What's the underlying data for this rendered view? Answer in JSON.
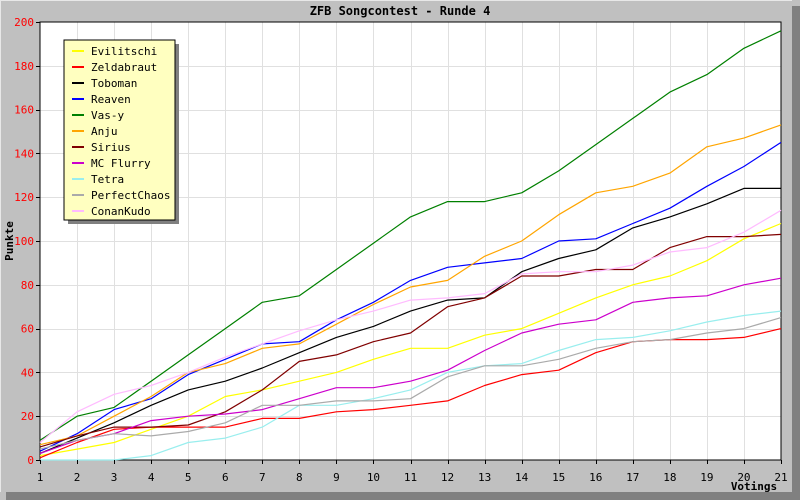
{
  "chart_data": {
    "type": "line",
    "title": "ZFB Songcontest - Runde 4",
    "xlabel": "Votings",
    "ylabel": "Punkte",
    "x": [
      1,
      2,
      3,
      4,
      5,
      6,
      7,
      8,
      9,
      10,
      11,
      12,
      13,
      14,
      15,
      16,
      17,
      18,
      19,
      20,
      21
    ],
    "x_tick_labels": [
      "1",
      "2",
      "3",
      "4",
      "5",
      "6",
      "7",
      "8",
      "9",
      "10",
      "11",
      "12",
      "13",
      "14",
      "15",
      "16",
      "17",
      "18",
      "19",
      "20",
      "21"
    ],
    "y_tick_labels": [
      "0",
      "20",
      "40",
      "60",
      "80",
      "100",
      "120",
      "140",
      "160",
      "180",
      "200"
    ],
    "xlim": [
      1,
      21
    ],
    "ylim": [
      0,
      200
    ],
    "grid": true,
    "legend_position": "top-left",
    "colors": {
      "page_background": "#c0c0c0",
      "plot_background": "#ffffff",
      "grid": "#e0e0e0",
      "y_tick_color": "#ff0000",
      "legend_background": "#ffffc0"
    },
    "series": [
      {
        "name": "Evilitschi",
        "color": "#ffff00",
        "values": [
          2,
          5,
          8,
          14,
          20,
          29,
          32,
          36,
          40,
          46,
          51,
          51,
          57,
          60,
          67,
          74,
          80,
          84,
          91,
          101,
          108
        ]
      },
      {
        "name": "Zeldabraut",
        "color": "#ff0000",
        "values": [
          1,
          8,
          14,
          15,
          15,
          15,
          19,
          19,
          22,
          23,
          25,
          27,
          34,
          39,
          41,
          49,
          54,
          55,
          55,
          56,
          60
        ]
      },
      {
        "name": "Toboman",
        "color": "#000000",
        "values": [
          3,
          10,
          17,
          25,
          32,
          36,
          42,
          49,
          56,
          61,
          68,
          73,
          74,
          86,
          92,
          96,
          106,
          111,
          117,
          124,
          124
        ]
      },
      {
        "name": "Reaven",
        "color": "#0000ff",
        "values": [
          4,
          12,
          23,
          28,
          39,
          46,
          53,
          54,
          64,
          72,
          82,
          88,
          90,
          92,
          100,
          101,
          108,
          115,
          125,
          134,
          145
        ]
      },
      {
        "name": "Vas-y",
        "color": "#008000",
        "values": [
          9,
          20,
          24,
          36,
          48,
          60,
          72,
          75,
          87,
          99,
          111,
          118,
          118,
          122,
          132,
          144,
          156,
          168,
          176,
          188,
          196
        ]
      },
      {
        "name": "Anju",
        "color": "#ffa500",
        "values": [
          7,
          11,
          20,
          29,
          40,
          44,
          51,
          53,
          62,
          71,
          79,
          82,
          93,
          100,
          112,
          122,
          125,
          131,
          143,
          147,
          153
        ]
      },
      {
        "name": "Sirius",
        "color": "#800000",
        "values": [
          6,
          11,
          15,
          15,
          16,
          22,
          32,
          45,
          48,
          54,
          58,
          70,
          74,
          84,
          84,
          87,
          87,
          97,
          102,
          102,
          103
        ]
      },
      {
        "name": "MC Flurry",
        "color": "#cc00cc",
        "values": [
          3,
          9,
          12,
          18,
          20,
          21,
          23,
          28,
          33,
          33,
          36,
          41,
          50,
          58,
          62,
          64,
          72,
          74,
          75,
          80,
          83
        ]
      },
      {
        "name": "Tetra",
        "color": "#99eeee",
        "values": [
          0,
          0,
          0,
          2,
          8,
          10,
          15,
          25,
          25,
          28,
          32,
          40,
          43,
          44,
          50,
          55,
          56,
          59,
          63,
          66,
          68
        ]
      },
      {
        "name": "PerfectChaos",
        "color": "#aaaaaa",
        "values": [
          5,
          9,
          12,
          11,
          13,
          17,
          25,
          25,
          27,
          27,
          28,
          38,
          43,
          43,
          46,
          51,
          54,
          55,
          58,
          60,
          65
        ]
      },
      {
        "name": "ConanKudo",
        "color": "#ffbbff",
        "values": [
          8,
          22,
          30,
          34,
          40,
          47,
          53,
          59,
          64,
          68,
          73,
          74,
          76,
          85,
          86,
          86,
          89,
          95,
          97,
          104,
          114
        ]
      }
    ]
  }
}
